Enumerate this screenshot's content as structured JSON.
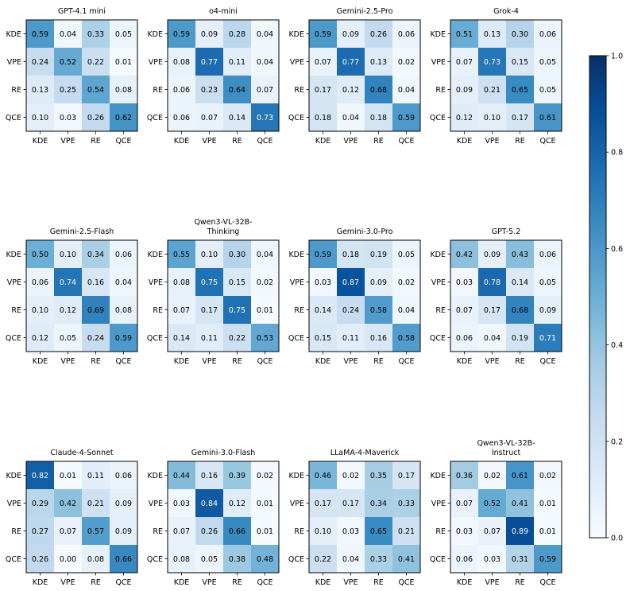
{
  "chart_data": [
    {
      "type": "heatmap",
      "title": "GPT-4.1 mini",
      "row_labels": [
        "KDE",
        "VPE",
        "RE",
        "QCE"
      ],
      "col_labels": [
        "KDE",
        "VPE",
        "RE",
        "QCE"
      ],
      "values": [
        [
          "0.59",
          "0.04",
          "0.33",
          "0.05"
        ],
        [
          "0.24",
          "0.52",
          "0.22",
          "0.01"
        ],
        [
          "0.13",
          "0.25",
          "0.54",
          "0.08"
        ],
        [
          "0.10",
          "0.03",
          "0.26",
          "0.62"
        ]
      ]
    },
    {
      "type": "heatmap",
      "title": "o4-mini",
      "row_labels": [
        "KDE",
        "VPE",
        "RE",
        "QCE"
      ],
      "col_labels": [
        "KDE",
        "VPE",
        "RE",
        "QCE"
      ],
      "values": [
        [
          "0.59",
          "0.09",
          "0.28",
          "0.04"
        ],
        [
          "0.08",
          "0.77",
          "0.11",
          "0.04"
        ],
        [
          "0.06",
          "0.23",
          "0.64",
          "0.07"
        ],
        [
          "0.06",
          "0.07",
          "0.14",
          "0.73"
        ]
      ]
    },
    {
      "type": "heatmap",
      "title": "Gemini-2.5-Pro",
      "row_labels": [
        "KDE",
        "VPE",
        "RE",
        "QCE"
      ],
      "col_labels": [
        "KDE",
        "VPE",
        "RE",
        "QCE"
      ],
      "values": [
        [
          "0.59",
          "0.09",
          "0.26",
          "0.06"
        ],
        [
          "0.07",
          "0.77",
          "0.13",
          "0.02"
        ],
        [
          "0.17",
          "0.12",
          "0.68",
          "0.04"
        ],
        [
          "0.18",
          "0.04",
          "0.18",
          "0.59"
        ]
      ]
    },
    {
      "type": "heatmap",
      "title": "Grok-4",
      "row_labels": [
        "KDE",
        "VPE",
        "RE",
        "QCE"
      ],
      "col_labels": [
        "KDE",
        "VPE",
        "RE",
        "QCE"
      ],
      "values": [
        [
          "0.51",
          "0.13",
          "0.30",
          "0.06"
        ],
        [
          "0.07",
          "0.73",
          "0.15",
          "0.05"
        ],
        [
          "0.09",
          "0.21",
          "0.65",
          "0.05"
        ],
        [
          "0.12",
          "0.10",
          "0.17",
          "0.61"
        ]
      ]
    },
    {
      "type": "heatmap",
      "title": "Gemini-2.5-Flash",
      "row_labels": [
        "KDE",
        "VPE",
        "RE",
        "QCE"
      ],
      "col_labels": [
        "KDE",
        "VPE",
        "RE",
        "QCE"
      ],
      "values": [
        [
          "0.50",
          "0.10",
          "0.34",
          "0.06"
        ],
        [
          "0.06",
          "0.74",
          "0.16",
          "0.04"
        ],
        [
          "0.10",
          "0.12",
          "0.69",
          "0.08"
        ],
        [
          "0.12",
          "0.05",
          "0.24",
          "0.59"
        ]
      ]
    },
    {
      "type": "heatmap",
      "title": "Qwen3-VL-32B-\nThinking",
      "row_labels": [
        "KDE",
        "VPE",
        "RE",
        "QCE"
      ],
      "col_labels": [
        "KDE",
        "VPE",
        "RE",
        "QCE"
      ],
      "values": [
        [
          "0.55",
          "0.10",
          "0.30",
          "0.04"
        ],
        [
          "0.08",
          "0.75",
          "0.15",
          "0.02"
        ],
        [
          "0.07",
          "0.17",
          "0.75",
          "0.01"
        ],
        [
          "0.14",
          "0.11",
          "0.22",
          "0.53"
        ]
      ]
    },
    {
      "type": "heatmap",
      "title": "Gemini-3.0-Pro",
      "row_labels": [
        "KDE",
        "VPE",
        "RE",
        "QCE"
      ],
      "col_labels": [
        "KDE",
        "VPE",
        "RE",
        "QCE"
      ],
      "values": [
        [
          "0.59",
          "0.18",
          "0.19",
          "0.05"
        ],
        [
          "0.03",
          "0.87",
          "0.09",
          "0.02"
        ],
        [
          "0.14",
          "0.24",
          "0.58",
          "0.04"
        ],
        [
          "0.15",
          "0.11",
          "0.16",
          "0.58"
        ]
      ]
    },
    {
      "type": "heatmap",
      "title": "GPT-5.2",
      "row_labels": [
        "KDE",
        "VPE",
        "RE",
        "QCE"
      ],
      "col_labels": [
        "KDE",
        "VPE",
        "RE",
        "QCE"
      ],
      "values": [
        [
          "0.42",
          "0.09",
          "0.43",
          "0.06"
        ],
        [
          "0.03",
          "0.78",
          "0.14",
          "0.05"
        ],
        [
          "0.07",
          "0.17",
          "0.68",
          "0.09"
        ],
        [
          "0.06",
          "0.04",
          "0.19",
          "0.71"
        ]
      ]
    },
    {
      "type": "heatmap",
      "title": "Claude-4-Sonnet",
      "row_labels": [
        "KDE",
        "VPE",
        "RE",
        "QCE"
      ],
      "col_labels": [
        "KDE",
        "VPE",
        "RE",
        "QCE"
      ],
      "values": [
        [
          "0.82",
          "0.01",
          "0.11",
          "0.06"
        ],
        [
          "0.29",
          "0.42",
          "0.21",
          "0.09"
        ],
        [
          "0.27",
          "0.07",
          "0.57",
          "0.09"
        ],
        [
          "0.26",
          "0.00",
          "0.08",
          "0.66"
        ]
      ]
    },
    {
      "type": "heatmap",
      "title": "Gemini-3.0-Flash",
      "row_labels": [
        "KDE",
        "VPE",
        "RE",
        "QCE"
      ],
      "col_labels": [
        "KDE",
        "VPE",
        "RE",
        "QCE"
      ],
      "values": [
        [
          "0.44",
          "0.16",
          "0.39",
          "0.02"
        ],
        [
          "0.03",
          "0.84",
          "0.12",
          "0.01"
        ],
        [
          "0.07",
          "0.26",
          "0.66",
          "0.01"
        ],
        [
          "0.08",
          "0.05",
          "0.38",
          "0.48"
        ]
      ]
    },
    {
      "type": "heatmap",
      "title": "LLaMA-4-Maverick",
      "row_labels": [
        "KDE",
        "VPE",
        "RE",
        "QCE"
      ],
      "col_labels": [
        "KDE",
        "VPE",
        "RE",
        "QCE"
      ],
      "values": [
        [
          "0.46",
          "0.02",
          "0.35",
          "0.17"
        ],
        [
          "0.17",
          "0.17",
          "0.34",
          "0.33"
        ],
        [
          "0.10",
          "0.03",
          "0.65",
          "0.21"
        ],
        [
          "0.22",
          "0.04",
          "0.33",
          "0.41"
        ]
      ]
    },
    {
      "type": "heatmap",
      "title": "Qwen3-VL-32B-\nInstruct",
      "row_labels": [
        "KDE",
        "VPE",
        "RE",
        "QCE"
      ],
      "col_labels": [
        "KDE",
        "VPE",
        "RE",
        "QCE"
      ],
      "values": [
        [
          "0.36",
          "0.02",
          "0.61",
          "0.02"
        ],
        [
          "0.07",
          "0.52",
          "0.41",
          "0.01"
        ],
        [
          "0.03",
          "0.07",
          "0.89",
          "0.01"
        ],
        [
          "0.06",
          "0.03",
          "0.31",
          "0.59"
        ]
      ]
    }
  ],
  "colorbar": {
    "vmin": 0.0,
    "vmax": 1.0,
    "ticks": [
      "0.0",
      "0.2",
      "0.4",
      "0.6",
      "0.8",
      "1.0"
    ],
    "colormap": [
      "#f7fbff",
      "#deebf7",
      "#c6dbef",
      "#9ecae1",
      "#6baed6",
      "#4292c6",
      "#2171b5",
      "#08519c",
      "#08306b"
    ]
  }
}
